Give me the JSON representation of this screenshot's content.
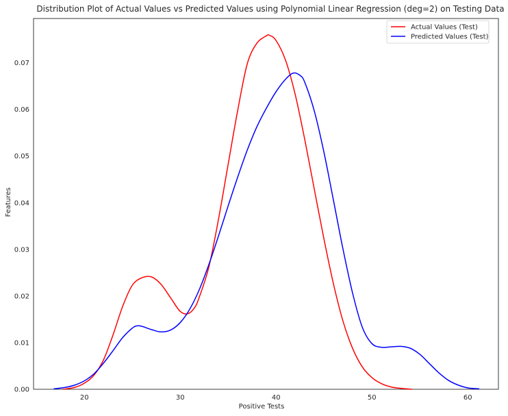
{
  "chart_data": {
    "type": "line",
    "title": "Distribution Plot of Actual Values vs Predicted Values using Polynomial Linear Regression (deg=2) on Testing Data",
    "xlabel": "Positive Tests",
    "ylabel": "Features",
    "xlim": [
      14.7,
      63.2
    ],
    "ylim": [
      0,
      0.0795
    ],
    "xticks": [
      20,
      30,
      40,
      50,
      60
    ],
    "yticks": [
      0.0,
      0.01,
      0.02,
      0.03,
      0.04,
      0.05,
      0.06,
      0.07
    ],
    "ytick_labels": [
      "0.00",
      "0.01",
      "0.02",
      "0.03",
      "0.04",
      "0.05",
      "0.06",
      "0.07"
    ],
    "grid": false,
    "legend_position": "top-right",
    "series": [
      {
        "name": "Actual Values (Test)",
        "color": "#ff0000",
        "x": [
          17.8,
          19,
          20,
          21,
          22,
          23,
          24,
          25,
          26,
          27,
          28,
          29,
          30,
          30.8,
          31.5,
          32,
          33,
          34,
          35,
          36,
          37,
          38,
          39,
          39.3,
          40,
          41,
          42,
          43,
          44,
          45,
          46,
          47,
          48,
          49,
          50,
          51,
          52,
          53,
          54.2
        ],
        "y": [
          0.0,
          0.0004,
          0.0013,
          0.003,
          0.0063,
          0.0117,
          0.0178,
          0.0223,
          0.0239,
          0.0241,
          0.0225,
          0.0196,
          0.0167,
          0.0162,
          0.0175,
          0.0198,
          0.0263,
          0.0365,
          0.0482,
          0.0598,
          0.0698,
          0.0742,
          0.0758,
          0.0759,
          0.0748,
          0.0705,
          0.0632,
          0.0535,
          0.0428,
          0.0322,
          0.0225,
          0.0145,
          0.0087,
          0.0048,
          0.0025,
          0.0012,
          0.0005,
          0.0002,
          0.0
        ]
      },
      {
        "name": "Predicted Values (Test)",
        "color": "#0000ff",
        "x": [
          16.8,
          18,
          19,
          20,
          21,
          22,
          23,
          24,
          25,
          25.5,
          26,
          27,
          28,
          29,
          30,
          31,
          32,
          33,
          34,
          35,
          36,
          37,
          38,
          39,
          40,
          41,
          41.8,
          42.5,
          43,
          44,
          45,
          46,
          47,
          48,
          49,
          50,
          51,
          52,
          53,
          54,
          55,
          56,
          57,
          58,
          59,
          60,
          61.2
        ],
        "y": [
          0.0001,
          0.0004,
          0.0009,
          0.0018,
          0.0033,
          0.0056,
          0.0083,
          0.0111,
          0.0131,
          0.0136,
          0.0135,
          0.0128,
          0.0123,
          0.0127,
          0.0143,
          0.0172,
          0.0214,
          0.0268,
          0.0329,
          0.0393,
          0.0455,
          0.0513,
          0.0563,
          0.0603,
          0.0638,
          0.0665,
          0.0678,
          0.0673,
          0.0658,
          0.0596,
          0.0508,
          0.0404,
          0.0299,
          0.0205,
          0.0133,
          0.0098,
          0.009,
          0.0091,
          0.0092,
          0.0088,
          0.0075,
          0.0055,
          0.0035,
          0.0019,
          0.0009,
          0.0003,
          0.0001
        ]
      }
    ]
  }
}
